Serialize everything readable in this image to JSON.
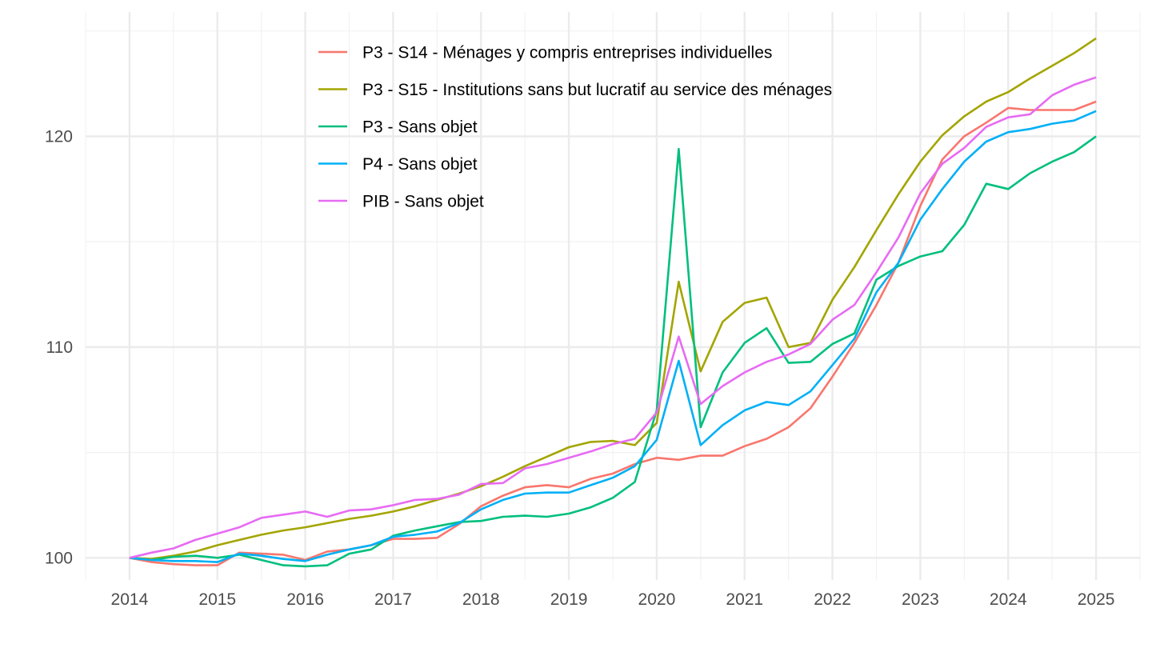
{
  "chart_data": {
    "type": "line",
    "title": "",
    "xlabel": "",
    "ylabel": "",
    "x_ticks": [
      "2014",
      "2015",
      "2016",
      "2017",
      "2018",
      "2019",
      "2020",
      "2021",
      "2022",
      "2023",
      "2024",
      "2025"
    ],
    "y_ticks": [
      "100",
      "110",
      "120"
    ],
    "xlim": [
      2013.5,
      2025.5
    ],
    "ylim": [
      98.95,
      125.9
    ],
    "grid": true,
    "legend_position": "top-center",
    "x": [
      2014.0,
      2014.25,
      2014.5,
      2014.75,
      2015.0,
      2015.25,
      2015.5,
      2015.75,
      2016.0,
      2016.25,
      2016.5,
      2016.75,
      2017.0,
      2017.25,
      2017.5,
      2017.75,
      2018.0,
      2018.25,
      2018.5,
      2018.75,
      2019.0,
      2019.25,
      2019.5,
      2019.75,
      2020.0,
      2020.25,
      2020.5,
      2020.75,
      2021.0,
      2021.25,
      2021.5,
      2021.75,
      2022.0,
      2022.25,
      2022.5,
      2022.75,
      2023.0,
      2023.25,
      2023.5,
      2023.75,
      2024.0,
      2024.25,
      2024.5,
      2024.75,
      2025.0
    ],
    "series": [
      {
        "name": "P3 - S14 - Ménages y compris entreprises individuelles",
        "color": "#F8766D",
        "values": [
          100.0,
          99.8,
          99.7,
          99.65,
          99.65,
          100.25,
          100.2,
          100.15,
          99.9,
          100.3,
          100.4,
          100.6,
          100.9,
          100.9,
          100.95,
          101.6,
          102.45,
          102.95,
          103.35,
          103.45,
          103.35,
          103.75,
          104.0,
          104.45,
          104.75,
          104.65,
          104.85,
          104.85,
          105.3,
          105.65,
          106.2,
          107.1,
          108.6,
          110.2,
          112.0,
          114.0,
          116.7,
          118.9,
          120.0,
          120.65,
          121.35,
          121.25,
          121.25,
          121.25,
          121.65
        ]
      },
      {
        "name": "P3 - S15 - Institutions sans but lucratif au service des ménages",
        "color": "#A3A500",
        "values": [
          100.0,
          99.95,
          100.1,
          100.3,
          100.6,
          100.85,
          101.1,
          101.3,
          101.45,
          101.65,
          101.85,
          102.0,
          102.2,
          102.45,
          102.75,
          103.05,
          103.4,
          103.85,
          104.35,
          104.8,
          105.25,
          105.5,
          105.55,
          105.35,
          106.4,
          113.1,
          108.85,
          111.2,
          112.1,
          112.35,
          110.0,
          110.2,
          112.25,
          113.8,
          115.55,
          117.25,
          118.8,
          120.05,
          120.95,
          121.65,
          122.1,
          122.75,
          123.35,
          123.95,
          124.65
        ]
      },
      {
        "name": "P3 - Sans objet",
        "color": "#00BF7D",
        "values": [
          100.0,
          99.9,
          100.05,
          100.1,
          100.0,
          100.15,
          99.9,
          99.65,
          99.6,
          99.65,
          100.2,
          100.4,
          101.05,
          101.3,
          101.5,
          101.7,
          101.75,
          101.95,
          102.0,
          101.95,
          102.1,
          102.4,
          102.85,
          103.6,
          107.0,
          119.4,
          106.2,
          108.8,
          110.2,
          110.9,
          109.25,
          109.3,
          110.15,
          110.65,
          113.2,
          113.85,
          114.3,
          114.55,
          115.8,
          117.75,
          117.5,
          118.25,
          118.8,
          119.25,
          120.0
        ]
      },
      {
        "name": "P4 - Sans objet",
        "color": "#00B0F6",
        "values": [
          100.0,
          99.9,
          99.85,
          99.85,
          99.8,
          100.2,
          100.1,
          99.95,
          99.85,
          100.15,
          100.4,
          100.6,
          101.0,
          101.1,
          101.25,
          101.65,
          102.3,
          102.75,
          103.05,
          103.1,
          103.1,
          103.45,
          103.8,
          104.35,
          105.6,
          109.35,
          105.35,
          106.3,
          107.0,
          107.4,
          107.25,
          107.9,
          109.15,
          110.4,
          112.6,
          114.0,
          116.05,
          117.5,
          118.8,
          119.75,
          120.2,
          120.35,
          120.6,
          120.75,
          121.2
        ]
      },
      {
        "name": "PIB - Sans objet",
        "color": "#E76BF3",
        "values": [
          100.0,
          100.25,
          100.45,
          100.85,
          101.15,
          101.45,
          101.9,
          102.05,
          102.2,
          101.95,
          102.25,
          102.3,
          102.5,
          102.75,
          102.8,
          103.0,
          103.5,
          103.55,
          104.25,
          104.45,
          104.75,
          105.05,
          105.4,
          105.65,
          106.9,
          110.5,
          107.3,
          108.15,
          108.8,
          109.3,
          109.65,
          110.15,
          111.3,
          112.0,
          113.55,
          115.2,
          117.3,
          118.7,
          119.45,
          120.45,
          120.9,
          121.05,
          121.95,
          122.45,
          122.8
        ]
      }
    ]
  }
}
